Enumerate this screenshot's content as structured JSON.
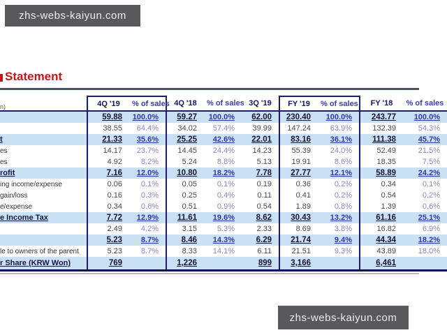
{
  "watermark_top": {
    "text": "zhs-webs-kaiyun.com"
  },
  "watermark_bottom": {
    "text": "zhs-webs-kaiyun.com"
  },
  "title": {
    "text": "Statement",
    "color": "#c4161c"
  },
  "colors": {
    "box_border": "#1c1c6b",
    "key_row_bg": "#c9e1f3",
    "header_navy": "#15155e",
    "pct_violet": "#3c3cb4",
    "watermark_bg": "#59595b",
    "title_red": "#c4161c"
  },
  "table": {
    "unit_label": "n)",
    "col_headers": [
      "4Q '19",
      "% of sales",
      "4Q '18",
      "% of sales",
      "3Q '19",
      "FY '19",
      "% of sales",
      "FY '18",
      "% of sales"
    ],
    "rows": [
      {
        "label": "",
        "key": true,
        "values": [
          "59.88",
          "100.0%",
          "59.27",
          "100.0%",
          "62.00",
          "230.40",
          "100.0%",
          "243.77",
          "100.0%"
        ]
      },
      {
        "label": "",
        "key": false,
        "values": [
          "38.55",
          "64.4%",
          "34.02",
          "57.4%",
          "39.99",
          "147.24",
          "63.9%",
          "132.39",
          "54.3%"
        ]
      },
      {
        "label": "t",
        "key": true,
        "values": [
          "21.33",
          "35.6%",
          "25.25",
          "42.6%",
          "22.01",
          "83.16",
          "36.1%",
          "111.38",
          "45.7%"
        ]
      },
      {
        "label": "es",
        "key": false,
        "values": [
          "14.17",
          "23.7%",
          "14.45",
          "24.4%",
          "14.23",
          "55.39",
          "24.0%",
          "52.49",
          "21.5%"
        ]
      },
      {
        "label": "es",
        "key": false,
        "values": [
          "4.92",
          "8.2%",
          "5.24",
          "8.8%",
          "5.13",
          "19.91",
          "8.6%",
          "18.35",
          "7.5%"
        ]
      },
      {
        "label": "rofit",
        "key": true,
        "values": [
          "7.16",
          "12.0%",
          "10.80",
          "18.2%",
          "7.78",
          "27.77",
          "12.1%",
          "58.89",
          "24.2%"
        ]
      },
      {
        "label": "ing income/expense",
        "key": false,
        "values": [
          "0.06",
          "0.1%",
          "0.05",
          "0.1%",
          "0.19",
          "0.36",
          "0.2%",
          "0.34",
          "0.1%"
        ]
      },
      {
        "label": "gain/loss",
        "key": false,
        "values": [
          "0.16",
          "0.3%",
          "0.25",
          "0.4%",
          "0.11",
          "0.41",
          "0.2%",
          "0.54",
          "0.2%"
        ]
      },
      {
        "label": "e/expense",
        "key": false,
        "values": [
          "0.34",
          "0.6%",
          "0.51",
          "0.9%",
          "0.54",
          "1.89",
          "0.8%",
          "1.39",
          "0.6%"
        ]
      },
      {
        "label": "e Income Tax",
        "key": true,
        "values": [
          "7.72",
          "12.9%",
          "11.61",
          "19.6%",
          "8.62",
          "30.43",
          "13.2%",
          "61.16",
          "25.1%"
        ]
      },
      {
        "label": "",
        "key": false,
        "values": [
          "2.49",
          "4.2%",
          "3.15",
          "5.3%",
          "2.33",
          "8.69",
          "3.8%",
          "16.82",
          "6.9%"
        ]
      },
      {
        "label": "",
        "key": true,
        "values": [
          "5.23",
          "8.7%",
          "8.46",
          "14.3%",
          "6.29",
          "21.74",
          "9.4%",
          "44.34",
          "18.2%"
        ]
      },
      {
        "label": "le to owners of the parent",
        "key": false,
        "values": [
          "5.23",
          "8.7%",
          "8.33",
          "14.1%",
          "6.11",
          "21.51",
          "9.3%",
          "43.89",
          "18.0%"
        ]
      },
      {
        "label": "r Share (KRW Won)",
        "key": true,
        "values": [
          "769",
          "",
          "1,226",
          "",
          "899",
          "3,166",
          "",
          "6,461",
          ""
        ]
      }
    ]
  }
}
